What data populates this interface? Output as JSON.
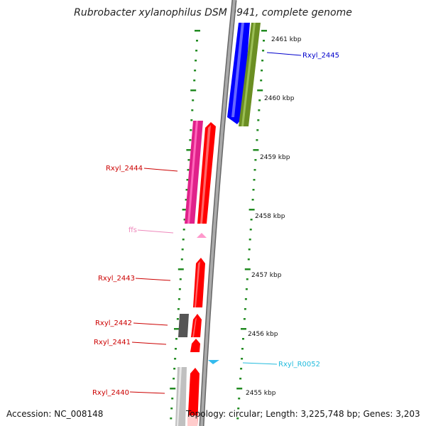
{
  "title": "Rubrobacter xylanophilus DSM 9941, complete genome",
  "footer": {
    "accession": "Accession: NC_008148",
    "topology": "Topology: circular; Length: 3,225,748 bp; Genes: 3,203"
  },
  "scale": {
    "ticks": [
      "2461 kbp",
      "2460 kbp",
      "2459 kbp",
      "2458 kbp",
      "2457 kbp",
      "2456 kbp",
      "2455 kbp"
    ]
  },
  "genes": [
    {
      "id": "Rxyl_2445",
      "color": "#0000cc",
      "strand": "+"
    },
    {
      "id": "Rxyl_2444",
      "color": "#cc0000",
      "strand": "-"
    },
    {
      "id": "ffs",
      "color": "#ee88bb",
      "strand": "-"
    },
    {
      "id": "Rxyl_2443",
      "color": "#cc0000",
      "strand": "-"
    },
    {
      "id": "Rxyl_2442",
      "color": "#cc0000",
      "strand": "-"
    },
    {
      "id": "Rxyl_2441",
      "color": "#cc0000",
      "strand": "-"
    },
    {
      "id": "Rxyl_R0052",
      "color": "#22bbdd",
      "strand": "+"
    },
    {
      "id": "Rxyl_2440",
      "color": "#cc0000",
      "strand": "-"
    }
  ],
  "colors": {
    "backbone": "#888888",
    "cds": "#ff0000",
    "cds_plus": "#0000ff",
    "cog_olive": "#6b8e23",
    "cog_magenta": "#e0218a",
    "rna": "#ff99cc",
    "trna": "#33bbee",
    "tick_green": "#228b22"
  }
}
